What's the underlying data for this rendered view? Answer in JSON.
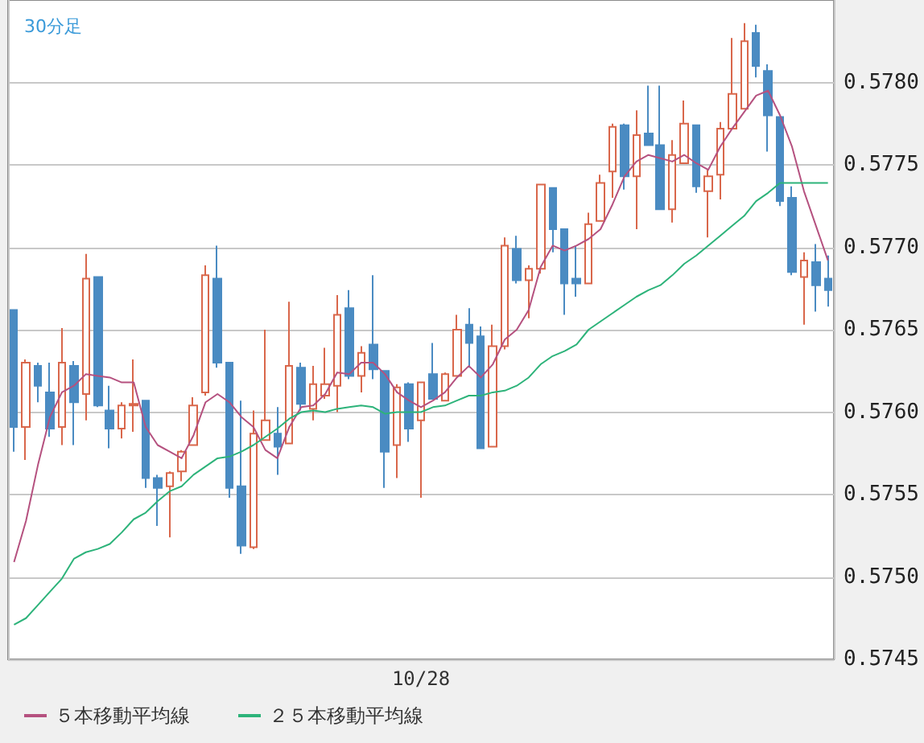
{
  "chart_data": {
    "type": "candlestick",
    "title": "30分足",
    "categories": [
      null,
      null,
      null,
      null,
      null,
      null,
      null,
      null,
      null,
      null,
      null,
      null,
      null,
      null,
      null,
      null,
      null,
      null,
      null,
      null,
      null,
      null,
      null,
      null,
      null,
      null,
      null,
      null,
      null,
      null,
      null,
      null,
      null,
      null,
      "10/28",
      null,
      null,
      null,
      null,
      null,
      null,
      null,
      null,
      null,
      null,
      null,
      null,
      null,
      null,
      null,
      null,
      null,
      null,
      null,
      null,
      null,
      null,
      null,
      null,
      null,
      null,
      null,
      null,
      null,
      null,
      null,
      null,
      null,
      null
    ],
    "ohlc": [
      [
        0.57662,
        0.57662,
        0.57576,
        0.57591
      ],
      [
        0.57591,
        0.57632,
        0.57571,
        0.5763
      ],
      [
        0.57628,
        0.5763,
        0.57606,
        0.57616
      ],
      [
        0.57612,
        0.5763,
        0.57585,
        0.5759
      ],
      [
        0.57591,
        0.57651,
        0.5758,
        0.5763
      ],
      [
        0.57628,
        0.57631,
        0.5758,
        0.57606
      ],
      [
        0.57611,
        0.57696,
        0.57595,
        0.57681
      ],
      [
        0.57682,
        0.57682,
        0.57603,
        0.57604
      ],
      [
        0.57601,
        0.57616,
        0.57578,
        0.5759
      ],
      [
        0.5759,
        0.57606,
        0.57584,
        0.57604
      ],
      [
        0.57604,
        0.57632,
        0.57588,
        0.57605
      ],
      [
        0.57607,
        0.57607,
        0.57554,
        0.5756
      ],
      [
        0.5756,
        0.57562,
        0.57531,
        0.57554
      ],
      [
        0.57555,
        0.57564,
        0.57524,
        0.57563
      ],
      [
        0.57564,
        0.57577,
        0.57558,
        0.57576
      ],
      [
        0.5758,
        0.57609,
        0.5758,
        0.57604
      ],
      [
        0.57612,
        0.57689,
        0.5761,
        0.57683
      ],
      [
        0.57681,
        0.57701,
        0.57627,
        0.5763
      ],
      [
        0.5763,
        0.5763,
        0.57548,
        0.57554
      ],
      [
        0.57555,
        0.57607,
        0.57514,
        0.57519
      ],
      [
        0.57518,
        0.57601,
        0.57517,
        0.57587
      ],
      [
        0.57583,
        0.5765,
        0.57583,
        0.57595
      ],
      [
        0.57587,
        0.57603,
        0.57562,
        0.57579
      ],
      [
        0.57581,
        0.57667,
        0.57581,
        0.57628
      ],
      [
        0.57627,
        0.5763,
        0.57601,
        0.57605
      ],
      [
        0.57602,
        0.57628,
        0.57595,
        0.57617
      ],
      [
        0.5761,
        0.57639,
        0.57608,
        0.57617
      ],
      [
        0.57616,
        0.57671,
        0.576,
        0.57659
      ],
      [
        0.57663,
        0.57674,
        0.5762,
        0.57622
      ],
      [
        0.57622,
        0.5764,
        0.57612,
        0.57636
      ],
      [
        0.57641,
        0.57683,
        0.5762,
        0.57626
      ],
      [
        0.57625,
        0.57625,
        0.57554,
        0.57576
      ],
      [
        0.5758,
        0.57617,
        0.5756,
        0.57615
      ],
      [
        0.57617,
        0.57618,
        0.57582,
        0.5759
      ],
      [
        0.57595,
        0.57618,
        0.57548,
        0.57618
      ],
      [
        0.57623,
        0.57642,
        0.57608,
        0.57608
      ],
      [
        0.57607,
        0.57624,
        0.57607,
        0.57623
      ],
      [
        0.57622,
        0.57659,
        0.57622,
        0.5765
      ],
      [
        0.57653,
        0.57663,
        0.57627,
        0.57642
      ],
      [
        0.57646,
        0.57652,
        0.57578,
        0.57578
      ],
      [
        0.57579,
        0.57653,
        0.57579,
        0.5764
      ],
      [
        0.5764,
        0.57706,
        0.57638,
        0.57701
      ],
      [
        0.57699,
        0.57707,
        0.57678,
        0.5768
      ],
      [
        0.5768,
        0.57689,
        0.57657,
        0.57687
      ],
      [
        0.57687,
        0.57738,
        0.57684,
        0.57738
      ],
      [
        0.57736,
        0.57736,
        0.57697,
        0.57711
      ],
      [
        0.57711,
        0.57711,
        0.57659,
        0.57678
      ],
      [
        0.57681,
        0.57701,
        0.5767,
        0.57678
      ],
      [
        0.57678,
        0.57721,
        0.57678,
        0.57714
      ],
      [
        0.57716,
        0.57744,
        0.57716,
        0.57739
      ],
      [
        0.57746,
        0.57775,
        0.5773,
        0.57773
      ],
      [
        0.57774,
        0.57775,
        0.57735,
        0.57743
      ],
      [
        0.57743,
        0.57783,
        0.57711,
        0.57768
      ],
      [
        0.57769,
        0.57798,
        0.57762,
        0.57762
      ],
      [
        0.57762,
        0.57798,
        0.57723,
        0.57723
      ],
      [
        0.57723,
        0.57765,
        0.57715,
        0.57756
      ],
      [
        0.57751,
        0.57789,
        0.57751,
        0.57775
      ],
      [
        0.57774,
        0.57774,
        0.57733,
        0.57737
      ],
      [
        0.57734,
        0.57747,
        0.57706,
        0.57743
      ],
      [
        0.57744,
        0.57776,
        0.57729,
        0.57772
      ],
      [
        0.57772,
        0.57827,
        0.57772,
        0.57793
      ],
      [
        0.57784,
        0.57836,
        0.57784,
        0.57825
      ],
      [
        0.5783,
        0.57835,
        0.57803,
        0.5781
      ],
      [
        0.57807,
        0.57811,
        0.57758,
        0.5778
      ],
      [
        0.57779,
        0.57779,
        0.57725,
        0.57728
      ],
      [
        0.5773,
        0.57737,
        0.57683,
        0.57685
      ],
      [
        0.57682,
        0.57697,
        0.57653,
        0.57692
      ],
      [
        0.57691,
        0.57702,
        0.57661,
        0.57677
      ],
      [
        0.57681,
        0.57695,
        0.57664,
        0.57674
      ]
    ],
    "colors": [
      "#4a8bc2",
      "#d9674b",
      "#4a8bc2",
      "#4a8bc2",
      "#d9674b",
      "#4a8bc2",
      "#d9674b",
      "#4a8bc2",
      "#4a8bc2",
      "#d9674b",
      "#d9674b",
      "#4a8bc2",
      "#4a8bc2",
      "#d9674b",
      "#d9674b",
      "#d9674b",
      "#d9674b",
      "#4a8bc2",
      "#4a8bc2",
      "#4a8bc2",
      "#d9674b",
      "#d9674b",
      "#4a8bc2",
      "#d9674b",
      "#4a8bc2",
      "#d9674b",
      "#d9674b",
      "#d9674b",
      "#4a8bc2",
      "#d9674b",
      "#4a8bc2",
      "#4a8bc2",
      "#d9674b",
      "#4a8bc2",
      "#d9674b",
      "#4a8bc2",
      "#d9674b",
      "#d9674b",
      "#4a8bc2",
      "#4a8bc2",
      "#d9674b",
      "#d9674b",
      "#4a8bc2",
      "#d9674b",
      "#d9674b",
      "#4a8bc2",
      "#4a8bc2",
      "#4a8bc2",
      "#d9674b",
      "#d9674b",
      "#d9674b",
      "#4a8bc2",
      "#d9674b",
      "#4a8bc2",
      "#4a8bc2",
      "#d9674b",
      "#d9674b",
      "#4a8bc2",
      "#d9674b",
      "#d9674b",
      "#d9674b",
      "#d9674b",
      "#4a8bc2",
      "#4a8bc2",
      "#4a8bc2",
      "#4a8bc2",
      "#d9674b",
      "#4a8bc2",
      "#4a8bc2"
    ],
    "series": [
      {
        "name": "５本移動平均線",
        "type": "line",
        "color": "#b5517f",
        "values": [
          0.57509,
          0.57534,
          0.57568,
          0.57597,
          0.57612,
          0.57616,
          0.57623,
          0.57622,
          0.57621,
          0.57618,
          0.57618,
          0.57591,
          0.5758,
          0.57576,
          0.57572,
          0.57586,
          0.57606,
          0.57611,
          0.57606,
          0.57597,
          0.57591,
          0.57577,
          0.57572,
          0.57591,
          0.57603,
          0.57604,
          0.57611,
          0.57624,
          0.57623,
          0.5763,
          0.5763,
          0.57623,
          0.57612,
          0.57607,
          0.57603,
          0.57607,
          0.57612,
          0.57621,
          0.57628,
          0.57621,
          0.57629,
          0.57644,
          0.5765,
          0.57662,
          0.57688,
          0.57701,
          0.57698,
          0.57701,
          0.57705,
          0.57711,
          0.57726,
          0.57743,
          0.57752,
          0.57756,
          0.57754,
          0.57752,
          0.57756,
          0.57751,
          0.57747,
          0.57761,
          0.57772,
          0.57782,
          0.57792,
          0.57795,
          0.5778,
          0.57761,
          0.57734,
          0.57713,
          0.57692
        ]
      },
      {
        "name": "２５本移動平均線",
        "type": "line",
        "color": "#2db37a",
        "values": [
          0.57471,
          0.57475,
          0.57483,
          0.57491,
          0.57499,
          0.57511,
          0.57515,
          0.57517,
          0.5752,
          0.57527,
          0.57535,
          0.57539,
          0.57546,
          0.57552,
          0.57555,
          0.57562,
          0.57567,
          0.57572,
          0.57573,
          0.57576,
          0.5758,
          0.57585,
          0.5759,
          0.57596,
          0.576,
          0.57601,
          0.576,
          0.57602,
          0.57603,
          0.57604,
          0.57603,
          0.57599,
          0.576,
          0.576,
          0.576,
          0.57603,
          0.57604,
          0.57607,
          0.5761,
          0.5761,
          0.57612,
          0.57613,
          0.57616,
          0.57621,
          0.57629,
          0.57634,
          0.57637,
          0.57641,
          0.5765,
          0.57655,
          0.5766,
          0.57665,
          0.5767,
          0.57674,
          0.57677,
          0.57683,
          0.5769,
          0.57695,
          0.57701,
          0.57707,
          0.57713,
          0.57719,
          0.57728,
          0.57733,
          0.57739,
          0.57739,
          0.57739,
          0.57739,
          0.57739
        ]
      }
    ],
    "ylim": [
      0.5745,
      0.5785
    ],
    "yticks": [
      0.5745,
      {
        "value": 0.575,
        "label": "0.5750"
      },
      0.5755,
      {
        "value": 0.576,
        "label": "0.5760"
      },
      0.5765,
      {
        "value": 0.577,
        "label": "0.5770"
      },
      0.5775,
      {
        "value": 0.578,
        "label": "0.5780"
      }
    ],
    "grid": true,
    "legend": "bottom",
    "marker": "none"
  }
}
